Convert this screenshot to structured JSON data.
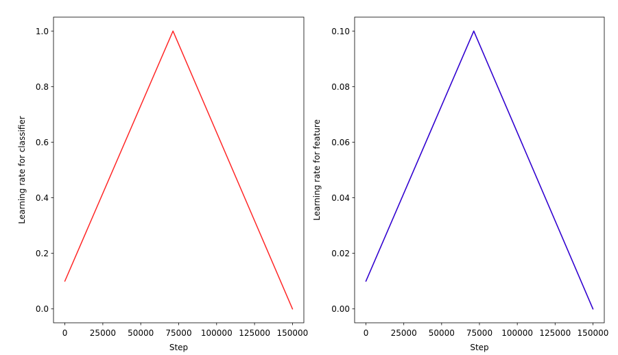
{
  "chart_data": [
    {
      "type": "line",
      "xlabel": "Step",
      "ylabel": "Learning rate for classifier",
      "xlim": [
        -7500,
        157500
      ],
      "ylim": [
        -0.05,
        1.05
      ],
      "xticks": [
        0,
        25000,
        50000,
        75000,
        100000,
        125000,
        150000
      ],
      "xtick_labels": [
        "0",
        "25000",
        "50000",
        "75000",
        "100000",
        "125000",
        "150000"
      ],
      "yticks": [
        0.0,
        0.2,
        0.4,
        0.6,
        0.8,
        1.0
      ],
      "ytick_labels": [
        "0.0",
        "0.2",
        "0.4",
        "0.6",
        "0.8",
        "1.0"
      ],
      "grid": false,
      "series": [
        {
          "color": "#ff0000",
          "x": [
            0,
            71250,
            150000
          ],
          "y": [
            0.1,
            1.0,
            0.0
          ]
        }
      ]
    },
    {
      "type": "line",
      "xlabel": "Step",
      "ylabel": "Learning rate for feature",
      "xlim": [
        -7500,
        157500
      ],
      "ylim": [
        -0.005,
        0.105
      ],
      "xticks": [
        0,
        25000,
        50000,
        75000,
        100000,
        125000,
        150000
      ],
      "xtick_labels": [
        "0",
        "25000",
        "50000",
        "75000",
        "100000",
        "125000",
        "150000"
      ],
      "yticks": [
        0.0,
        0.02,
        0.04,
        0.06,
        0.08,
        0.1
      ],
      "ytick_labels": [
        "0.00",
        "0.02",
        "0.04",
        "0.06",
        "0.08",
        "0.10"
      ],
      "grid": false,
      "series": [
        {
          "color": "#ff0000",
          "x": [
            0,
            71250,
            150000
          ],
          "y": [
            0.01,
            0.1,
            0.0
          ]
        },
        {
          "color": "#0000ff",
          "x": [
            0,
            71250,
            150000
          ],
          "y": [
            0.01,
            0.1,
            0.0
          ]
        }
      ]
    }
  ]
}
